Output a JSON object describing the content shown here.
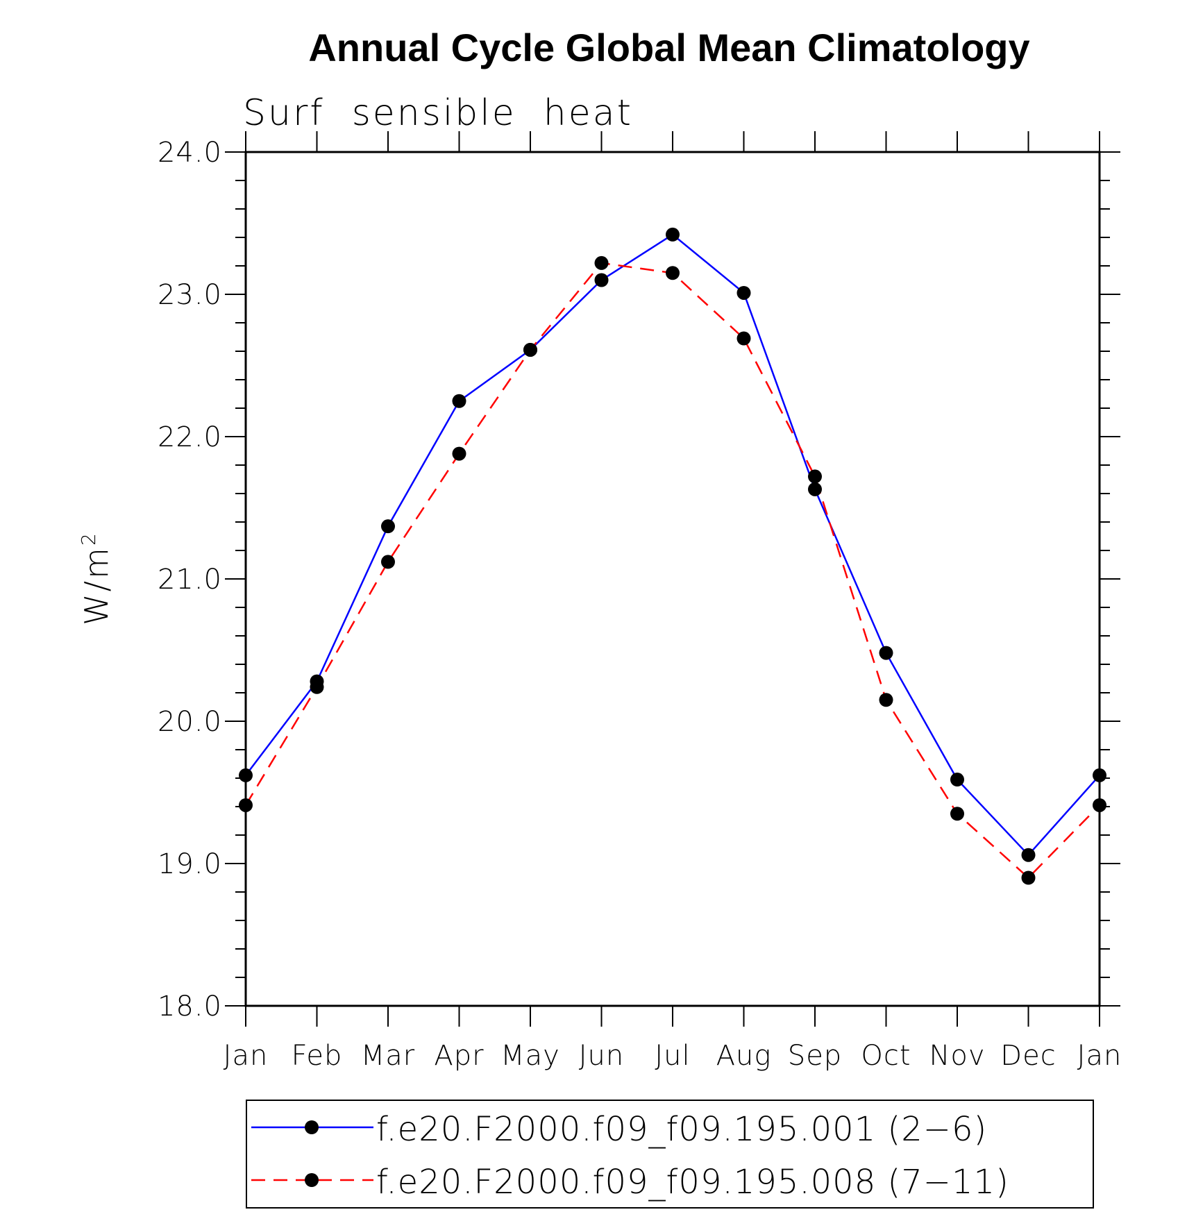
{
  "chart_data": {
    "type": "line",
    "title": "Annual Cycle Global Mean Climatology",
    "subtitle": "Surf  sensible  heat",
    "ylabel": "W/m",
    "ylabel_superscript": "2",
    "xlabel": "",
    "ylim": [
      18.0,
      24.0
    ],
    "y_ticks": [
      "18.0",
      "19.0",
      "20.0",
      "21.0",
      "22.0",
      "23.0",
      "24.0"
    ],
    "categories": [
      "Jan",
      "Feb",
      "Mar",
      "Apr",
      "May",
      "Jun",
      "Jul",
      "Aug",
      "Sep",
      "Oct",
      "Nov",
      "Dec",
      "Jan"
    ],
    "grid": false,
    "legend_position": "bottom",
    "series": [
      {
        "name": "f.e20.F2000.f09_f09.195.001 (2−6)",
        "color": "#0000ff",
        "dash": "solid",
        "marker": "filled-circle",
        "values": [
          19.62,
          20.28,
          21.37,
          22.25,
          22.61,
          23.1,
          23.42,
          23.01,
          21.63,
          20.48,
          19.59,
          19.06,
          19.62
        ]
      },
      {
        "name": "f.e20.F2000.f09_f09.195.008 (7−11)",
        "color": "#ff0000",
        "dash": "dashed",
        "marker": "filled-circle",
        "values": [
          19.41,
          20.24,
          21.12,
          21.88,
          22.61,
          23.22,
          23.15,
          22.69,
          21.72,
          20.15,
          19.35,
          18.9,
          19.41
        ]
      }
    ]
  }
}
